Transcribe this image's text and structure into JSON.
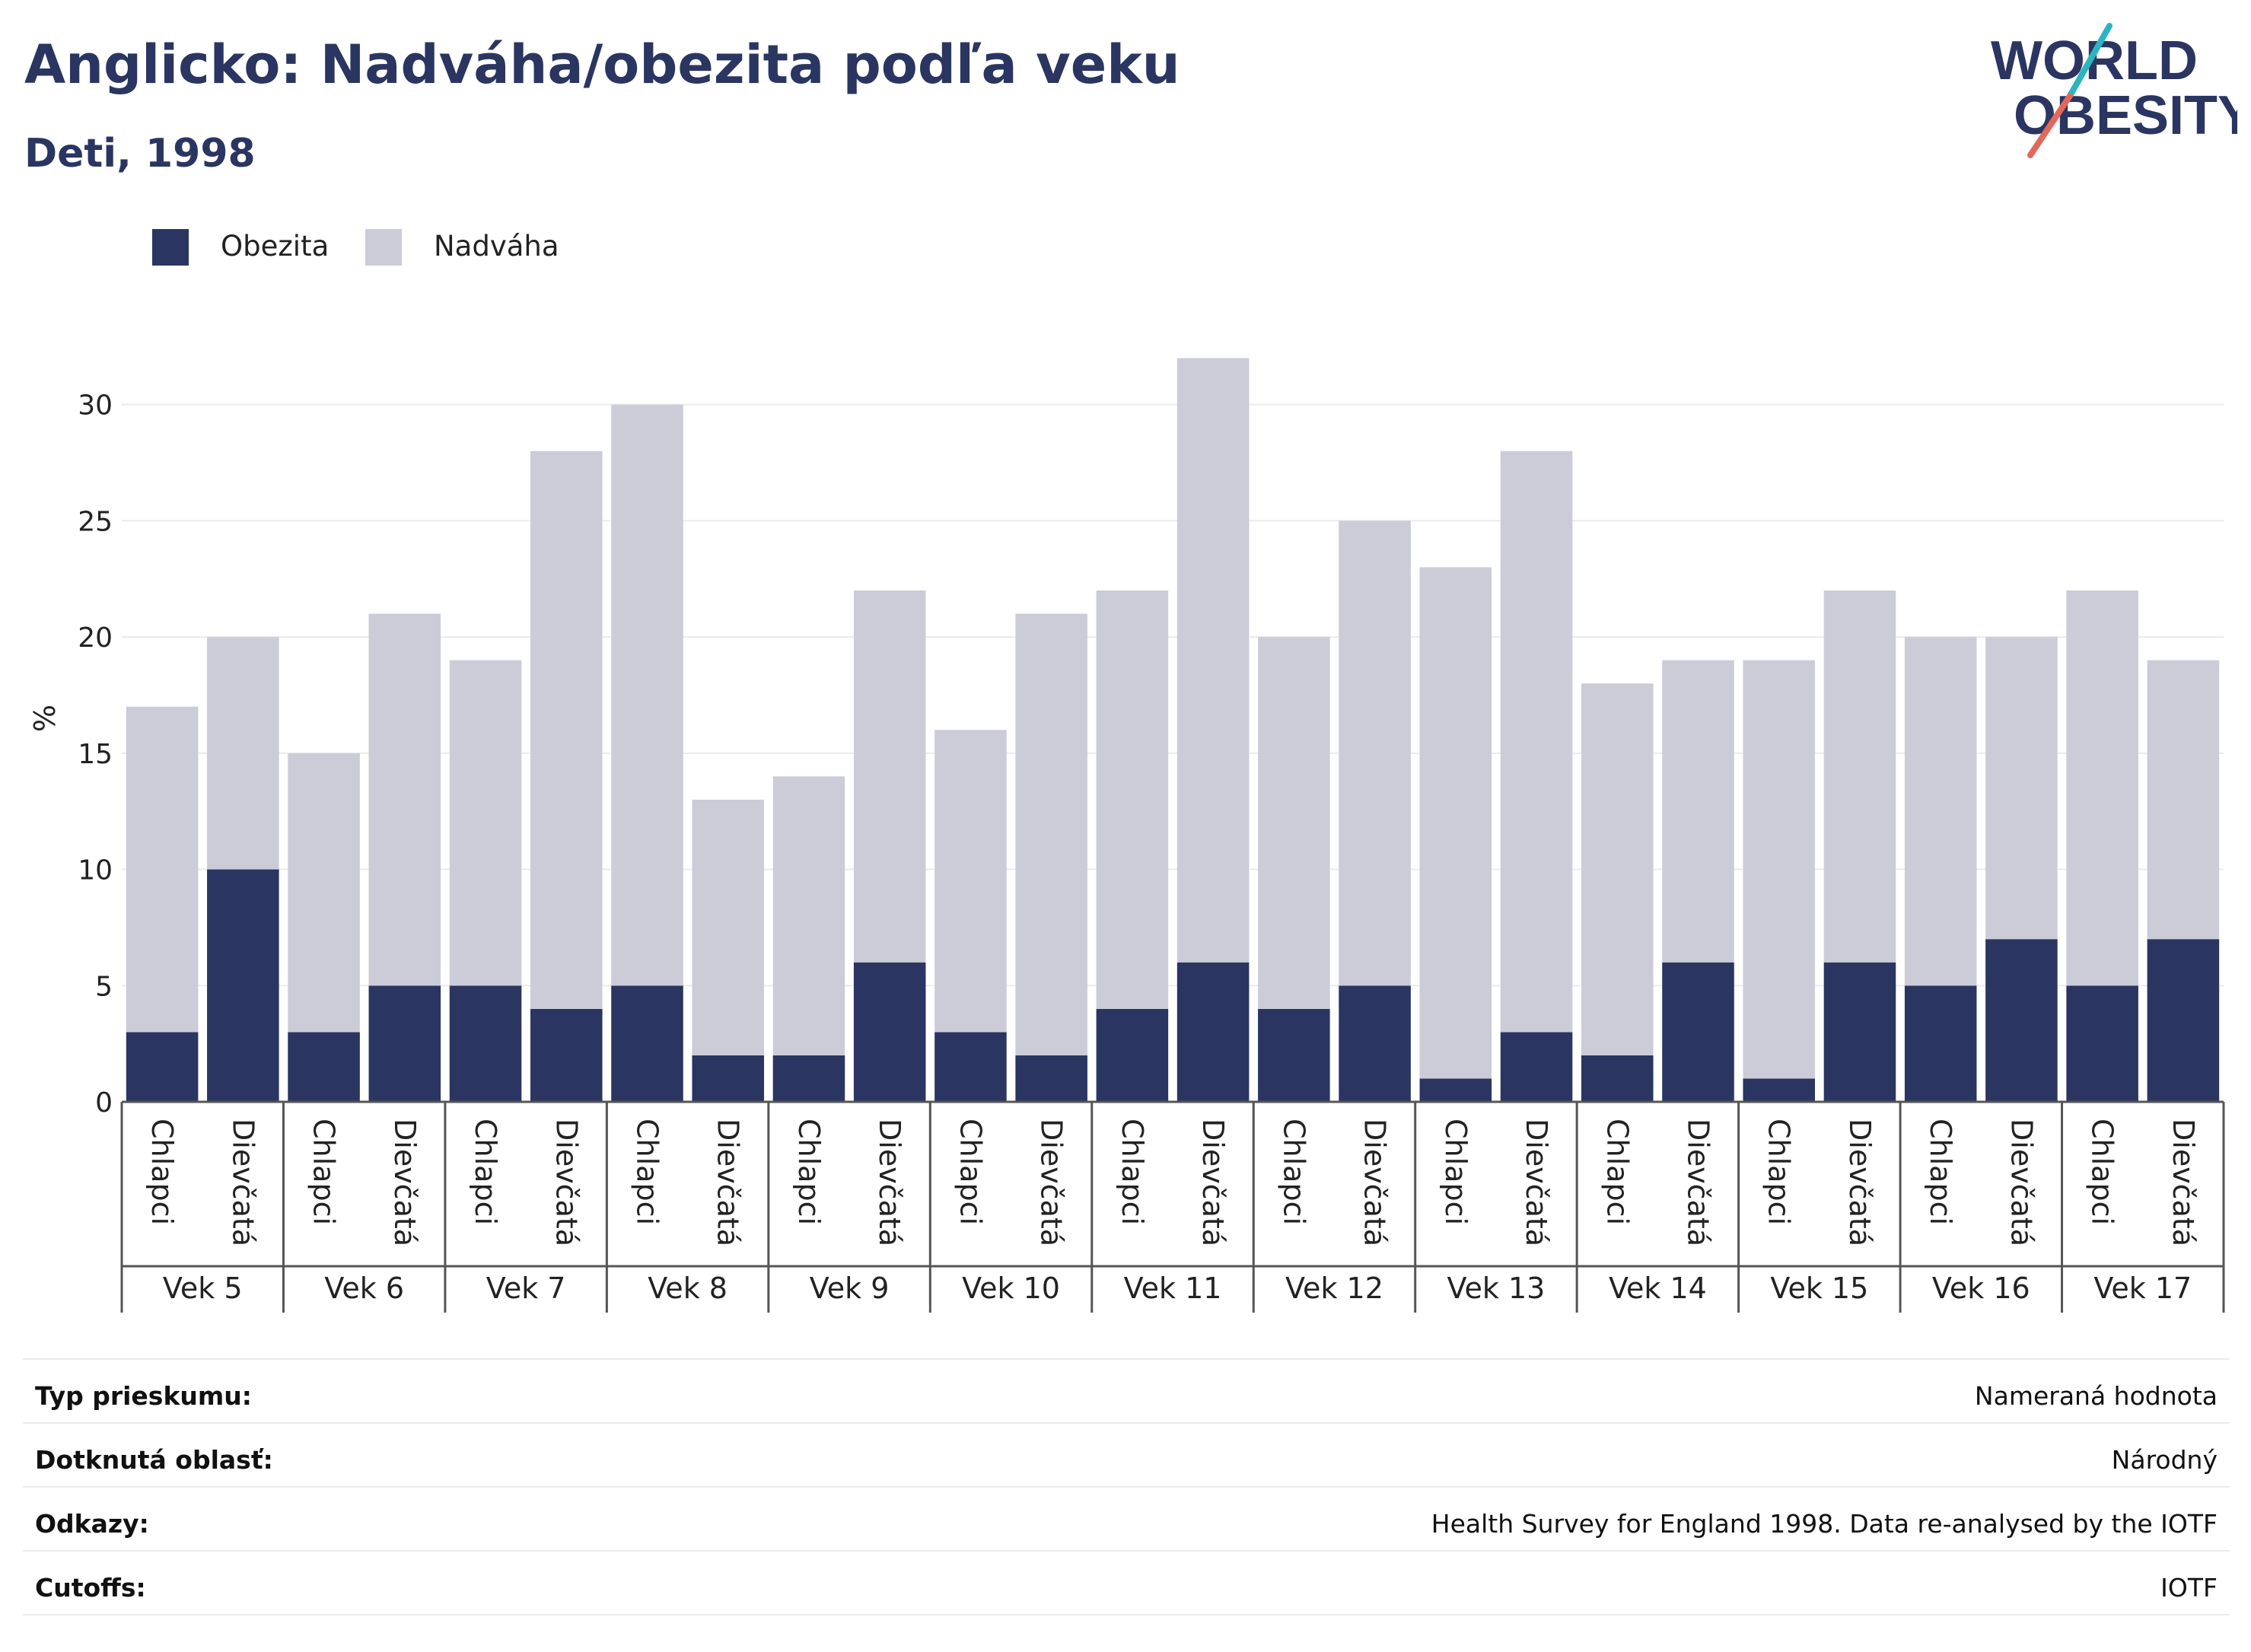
{
  "title": "Anglicko: Nadváha/obezita podľa veku",
  "subtitle": "Deti, 1998",
  "logo": {
    "line1": "WORLD",
    "line2": "OBESITY",
    "accent_colors": [
      "#2bb5c0",
      "#e4685a"
    ]
  },
  "legend": [
    {
      "label": "Obezita",
      "color": "#2a3561"
    },
    {
      "label": "Nadváha",
      "color": "#cbccd8"
    }
  ],
  "chart_data": {
    "type": "bar",
    "stacked": true,
    "ylabel": "%",
    "ylim": [
      0,
      33
    ],
    "yticks": [
      0,
      5,
      10,
      15,
      20,
      25,
      30
    ],
    "grid": true,
    "legend_position": "top-left",
    "groups": [
      "Vek 5",
      "Vek 6",
      "Vek 7",
      "Vek 8",
      "Vek 9",
      "Vek 10",
      "Vek 11",
      "Vek 12",
      "Vek 13",
      "Vek 14",
      "Vek 15",
      "Vek 16",
      "Vek 17"
    ],
    "subcategories": [
      "Chlapci",
      "Dievčatá"
    ],
    "series": [
      {
        "name": "Obezita",
        "color": "#2a3561",
        "values": [
          3,
          10,
          3,
          5,
          5,
          4,
          5,
          2,
          2,
          6,
          3,
          2,
          4,
          6,
          4,
          5,
          1,
          3,
          2,
          6,
          1,
          6,
          5,
          7,
          5,
          7
        ]
      },
      {
        "name": "Nadváha",
        "color": "#cbccd8",
        "values": [
          14,
          10,
          12,
          16,
          14,
          24,
          25,
          11,
          12,
          16,
          13,
          19,
          18,
          26,
          16,
          20,
          22,
          25,
          16,
          13,
          18,
          16,
          15,
          13,
          17,
          12
        ]
      }
    ]
  },
  "meta": [
    {
      "label": "Typ prieskumu:",
      "value": "Nameraná hodnota"
    },
    {
      "label": "Dotknutá oblasť:",
      "value": "Národný"
    },
    {
      "label": "Odkazy:",
      "value": "Health Survey for England 1998. Data re-analysed by the IOTF"
    },
    {
      "label": "Cutoffs:",
      "value": "IOTF"
    }
  ]
}
